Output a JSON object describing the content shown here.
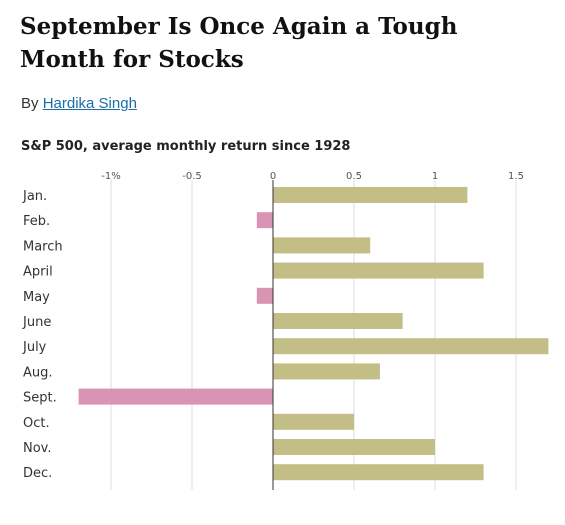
{
  "article": {
    "headline": "September Is Once Again a Tough Month for Stocks",
    "byline_prefix": "By",
    "author": "Hardika Singh"
  },
  "colors": {
    "positive": "#c3bd86",
    "negative": "#d993b3",
    "gridline": "#dcdcdc",
    "zero_line": "#333333",
    "author_link": "#1a6ea8"
  },
  "chart_data": {
    "type": "bar",
    "orientation": "horizontal",
    "title": "S&P 500, average monthly return since 1928",
    "categories": [
      "Jan.",
      "Feb.",
      "March",
      "April",
      "May",
      "June",
      "July",
      "Aug.",
      "Sept.",
      "Oct.",
      "Nov.",
      "Dec."
    ],
    "values": [
      1.2,
      -0.1,
      0.6,
      1.3,
      -0.1,
      0.8,
      1.7,
      0.66,
      -1.2,
      0.5,
      1.0,
      1.3
    ],
    "unit": "%",
    "xlim": [
      -1.25,
      1.75
    ],
    "ticks": [
      -1,
      -0.5,
      0,
      0.5,
      1,
      1.5
    ],
    "tick_labels": [
      "-1%",
      "-0.5",
      "0",
      "0.5",
      "1",
      "1.5"
    ],
    "grid": true,
    "legend": "none"
  }
}
